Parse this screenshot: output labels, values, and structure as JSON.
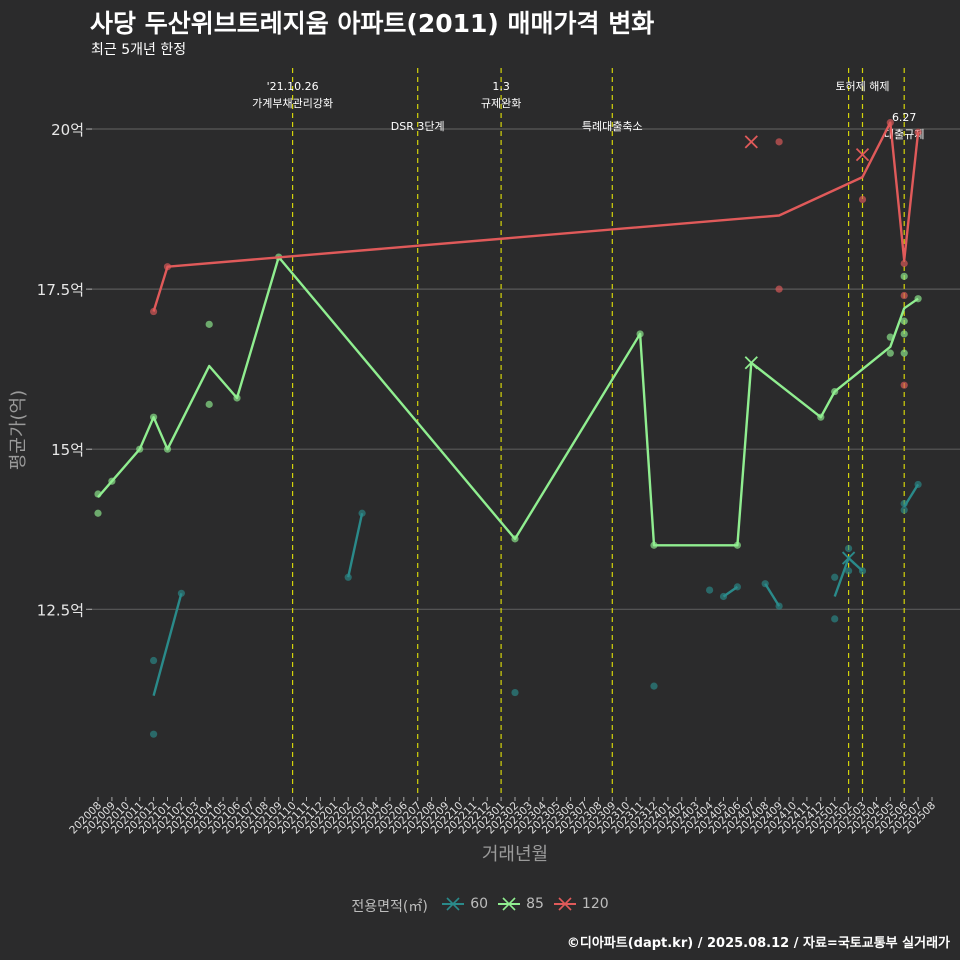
{
  "title": "사당 두산위브트레지움 아파트(2011) 매매가격 변화",
  "subtitle": "최근 5개년 한정",
  "caption": "©디아파트(dapt.kr) / 2025.08.12 / 자료=국토교통부 실거래가",
  "chart_data": {
    "type": "line",
    "xlabel": "거래년월",
    "ylabel": "평균가(억)",
    "yticks": [
      {
        "value": 12.5,
        "label": "12.5억"
      },
      {
        "value": 15,
        "label": "15억"
      },
      {
        "value": 17.5,
        "label": "17.5억"
      },
      {
        "value": 20,
        "label": "20억"
      }
    ],
    "ylim": [
      9.6,
      21.0
    ],
    "x_months": [
      "202008",
      "202009",
      "202010",
      "202011",
      "202012",
      "202101",
      "202102",
      "202103",
      "202104",
      "202105",
      "202106",
      "202107",
      "202108",
      "202109",
      "202110",
      "202111",
      "202112",
      "202201",
      "202202",
      "202203",
      "202204",
      "202205",
      "202206",
      "202207",
      "202208",
      "202209",
      "202210",
      "202211",
      "202212",
      "202301",
      "202302",
      "202303",
      "202304",
      "202305",
      "202306",
      "202307",
      "202308",
      "202309",
      "202310",
      "202311",
      "202312",
      "202401",
      "202402",
      "202403",
      "202404",
      "202405",
      "202406",
      "202407",
      "202408",
      "202409",
      "202410",
      "202411",
      "202412",
      "202501",
      "202502",
      "202503",
      "202504",
      "202505",
      "202506",
      "202507",
      "202508"
    ],
    "events": [
      {
        "x": 14.0,
        "lines": [
          "'21.10.26",
          "가계부채관리강화"
        ],
        "level": 0
      },
      {
        "x": 23.0,
        "lines": [
          "DSR 3단계"
        ],
        "level": 1
      },
      {
        "x": 29.0,
        "lines": [
          "1.3",
          "규제완화"
        ],
        "level": 0
      },
      {
        "x": 37.0,
        "lines": [
          "특례대출축소"
        ],
        "level": 1
      },
      {
        "x": 54.0,
        "lines": [],
        "level": 0
      },
      {
        "x": 55.0,
        "lines": [
          "토허제 해제"
        ],
        "level": 0
      },
      {
        "x": 58.0,
        "lines": [
          "6.27",
          "대출규제"
        ],
        "level": 2
      }
    ],
    "legend_title": "전용면적(㎡)",
    "series": [
      {
        "name": "60",
        "color": "#2a8a8a",
        "segments": [
          [
            [
              4,
              11.15
            ],
            [
              6,
              12.75
            ]
          ],
          [
            [
              18,
              13.0
            ],
            [
              19,
              14.0
            ]
          ],
          [
            [
              45.0,
              12.7
            ],
            [
              46.0,
              12.85
            ]
          ],
          [
            [
              48.0,
              12.9
            ],
            [
              49.0,
              12.55
            ]
          ],
          [
            [
              53.0,
              12.7
            ],
            [
              54.0,
              13.3
            ],
            [
              55.0,
              13.1
            ]
          ],
          [
            [
              58.0,
              14.1
            ],
            [
              59.0,
              14.45
            ]
          ]
        ],
        "points": [
          [
            4,
            11.7
          ],
          [
            4,
            10.55
          ],
          [
            6,
            12.75
          ],
          [
            18,
            13.0
          ],
          [
            19,
            14.0
          ],
          [
            30,
            11.2
          ],
          [
            40,
            11.3
          ],
          [
            44,
            12.8
          ],
          [
            45.0,
            12.7
          ],
          [
            46,
            12.85
          ],
          [
            48,
            12.9
          ],
          [
            49,
            12.55
          ],
          [
            53,
            12.35
          ],
          [
            53,
            13.0
          ],
          [
            54,
            13.1
          ],
          [
            54,
            13.45
          ],
          [
            55,
            13.1
          ],
          [
            58,
            14.15
          ],
          [
            58,
            14.05
          ],
          [
            59,
            14.45
          ]
        ],
        "xmarks": [
          [
            54.0,
            13.3
          ]
        ]
      },
      {
        "name": "85",
        "color": "#90ee90",
        "line": [
          [
            0,
            14.25
          ],
          [
            1,
            14.5
          ],
          [
            3,
            15.0
          ],
          [
            4,
            15.5
          ],
          [
            5,
            15.0
          ],
          [
            8,
            16.3
          ],
          [
            10,
            15.8
          ],
          [
            13,
            18.0
          ],
          [
            30,
            13.6
          ],
          [
            39,
            16.8
          ],
          [
            40,
            13.5
          ],
          [
            46,
            13.5
          ],
          [
            47,
            16.35
          ],
          [
            52,
            15.5
          ],
          [
            53,
            15.9
          ],
          [
            57,
            16.6
          ],
          [
            58,
            17.2
          ],
          [
            59,
            17.35
          ]
        ],
        "points": [
          [
            0,
            14.3
          ],
          [
            0,
            14.0
          ],
          [
            1,
            14.5
          ],
          [
            3,
            15.0
          ],
          [
            4,
            15.5
          ],
          [
            5,
            15.0
          ],
          [
            8,
            16.95
          ],
          [
            8,
            15.7
          ],
          [
            10,
            15.8
          ],
          [
            13,
            18.0
          ],
          [
            30,
            13.6
          ],
          [
            39,
            16.8
          ],
          [
            40,
            13.5
          ],
          [
            46,
            13.5
          ],
          [
            52,
            15.5
          ],
          [
            53,
            15.9
          ],
          [
            57,
            16.75
          ],
          [
            57,
            16.5
          ],
          [
            58,
            17.7
          ],
          [
            58,
            17.0
          ],
          [
            58,
            16.8
          ],
          [
            58,
            16.5
          ],
          [
            59,
            17.35
          ]
        ],
        "xmarks": [
          [
            47,
            16.35
          ]
        ]
      },
      {
        "name": "120",
        "color": "#e05a5a",
        "line": [
          [
            4,
            17.15
          ],
          [
            5,
            17.85
          ],
          [
            49,
            18.65
          ],
          [
            55,
            19.25
          ],
          [
            57,
            20.1
          ],
          [
            58,
            17.95
          ],
          [
            59,
            19.95
          ]
        ],
        "points": [
          [
            4,
            17.15
          ],
          [
            5,
            17.85
          ],
          [
            49,
            19.8
          ],
          [
            49,
            17.5
          ],
          [
            55,
            18.9
          ],
          [
            57,
            20.1
          ],
          [
            58,
            17.9
          ],
          [
            58,
            17.4
          ],
          [
            58,
            16.0
          ],
          [
            59,
            19.95
          ]
        ],
        "xmarks": [
          [
            47,
            19.8
          ],
          [
            55,
            19.6
          ]
        ]
      }
    ]
  }
}
